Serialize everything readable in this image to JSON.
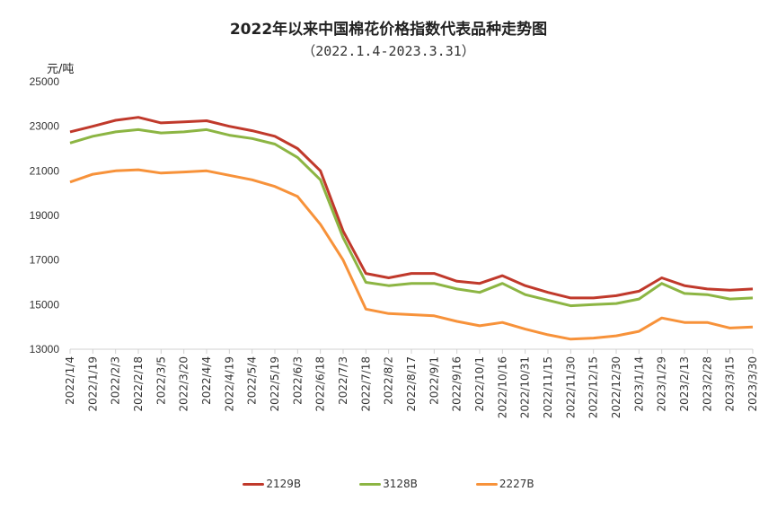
{
  "chart_data": {
    "type": "line",
    "title": "2022年以来中国棉花价格指数代表品种走势图",
    "subtitle": "（2022.1.4-2023.3.31）",
    "ylabel": "元/吨",
    "xlabel": "",
    "ylim": [
      13000,
      25000
    ],
    "yticks": [
      13000,
      15000,
      17000,
      19000,
      21000,
      23000,
      25000
    ],
    "grid": false,
    "legend_position": "bottom",
    "categories": [
      "2022/1/4",
      "2022/1/19",
      "2022/2/3",
      "2022/2/18",
      "2022/3/5",
      "2022/3/20",
      "2022/4/4",
      "2022/4/19",
      "2022/5/4",
      "2022/5/19",
      "2022/6/3",
      "2022/6/18",
      "2022/7/3",
      "2022/7/18",
      "2022/8/2",
      "2022/8/17",
      "2022/9/1",
      "2022/9/16",
      "2022/10/1",
      "2022/10/16",
      "2022/10/31",
      "2022/11/15",
      "2022/11/30",
      "2022/12/15",
      "2022/12/30",
      "2023/1/14",
      "2023/1/29",
      "2023/2/13",
      "2023/2/28",
      "2023/3/15",
      "2023/3/30"
    ],
    "series": [
      {
        "name": "2129B",
        "color": "#c0392b",
        "values": [
          22750,
          23000,
          23270,
          23400,
          23150,
          23200,
          23250,
          23000,
          22800,
          22550,
          22000,
          21000,
          18300,
          16400,
          16200,
          16400,
          16400,
          16050,
          15950,
          16300,
          15850,
          15550,
          15300,
          15300,
          15400,
          15600,
          16200,
          15850,
          15700,
          15650,
          15700
        ]
      },
      {
        "name": "3128B",
        "color": "#8cb543",
        "values": [
          22250,
          22550,
          22750,
          22850,
          22700,
          22750,
          22850,
          22600,
          22450,
          22200,
          21600,
          20600,
          18000,
          16000,
          15850,
          15950,
          15950,
          15700,
          15550,
          15950,
          15450,
          15200,
          14950,
          15000,
          15050,
          15250,
          15950,
          15500,
          15450,
          15250,
          15300
        ]
      },
      {
        "name": "2227B",
        "color": "#f7923a",
        "values": [
          20500,
          20850,
          21000,
          21050,
          20900,
          20950,
          21000,
          20800,
          20600,
          20300,
          19850,
          18600,
          17000,
          14800,
          14600,
          14550,
          14500,
          14250,
          14050,
          14200,
          13900,
          13650,
          13450,
          13500,
          13600,
          13800,
          14400,
          14200,
          14200,
          13950,
          14000
        ]
      }
    ]
  }
}
